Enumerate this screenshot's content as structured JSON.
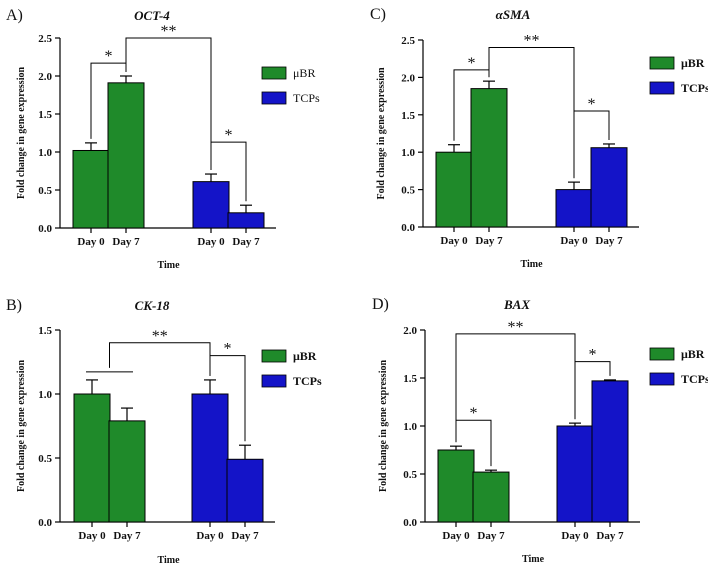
{
  "colors": {
    "ubr": "#1f8a2a",
    "tcps": "#1414c8",
    "axis": "#000000"
  },
  "chart_data": [
    {
      "type": "bar",
      "panel": "A)",
      "title": "OCT-4",
      "xlabel": "Time",
      "ylabel": "Fold change in gene expression",
      "ylim": [
        0,
        2.5
      ],
      "yticks": [
        "0.0",
        "0.5",
        "1.0",
        "1.5",
        "2.0",
        "2.5"
      ],
      "ytick_values": [
        0,
        0.5,
        1.0,
        1.5,
        2.0,
        2.5
      ],
      "categories": [
        "Day 0",
        "Day 7"
      ],
      "series": [
        {
          "name": "μBR",
          "values": [
            1.02,
            1.91
          ],
          "errors": [
            0.1,
            0.09
          ]
        },
        {
          "name": "TCPs",
          "values": [
            0.61,
            0.2
          ],
          "errors": [
            0.1,
            0.1
          ]
        }
      ],
      "legend_bold": false,
      "show_group_bracket": false,
      "annotations": [
        {
          "text": "*",
          "from": "0-0",
          "to": "0-1",
          "level": 2.17
        },
        {
          "text": "*",
          "from": "1-0",
          "to": "1-1",
          "level": 1.13
        },
        {
          "text": "**",
          "from": "0-1",
          "to": "1-0",
          "level": 2.5
        }
      ]
    },
    {
      "type": "bar",
      "panel": "C)",
      "title": "αSMA",
      "xlabel": "Time",
      "ylabel": "Fold change in gene expression",
      "ylim": [
        0,
        2.5
      ],
      "yticks": [
        "0.0",
        "0.5",
        "1.0",
        "1.5",
        "2.0",
        "2.5"
      ],
      "ytick_values": [
        0,
        0.5,
        1.0,
        1.5,
        2.0,
        2.5
      ],
      "categories": [
        "Day 0",
        "Day 7"
      ],
      "series": [
        {
          "name": "μBR",
          "values": [
            1.0,
            1.85
          ],
          "errors": [
            0.1,
            0.1
          ]
        },
        {
          "name": "TCPs",
          "values": [
            0.5,
            1.06
          ],
          "errors": [
            0.1,
            0.05
          ]
        }
      ],
      "legend_bold": true,
      "show_group_bracket": false,
      "annotations": [
        {
          "text": "*",
          "from": "0-0",
          "to": "0-1",
          "level": 2.1
        },
        {
          "text": "*",
          "from": "1-0",
          "to": "1-1",
          "level": 1.55
        },
        {
          "text": "**",
          "from": "0-1",
          "to": "1-0",
          "level": 2.4
        }
      ]
    },
    {
      "type": "bar",
      "panel": "B)",
      "title": "CK-18",
      "xlabel": "Time",
      "ylabel": "Fold change in gene expression",
      "ylim": [
        0,
        1.5
      ],
      "yticks": [
        "0.0",
        "0.5",
        "1.0",
        "1.5"
      ],
      "ytick_values": [
        0,
        0.5,
        1.0,
        1.5
      ],
      "categories": [
        "Day 0",
        "Day 7"
      ],
      "series": [
        {
          "name": "μBR",
          "values": [
            1.0,
            0.79
          ],
          "errors": [
            0.11,
            0.1
          ]
        },
        {
          "name": "TCPs",
          "values": [
            1.0,
            0.49
          ],
          "errors": [
            0.11,
            0.11
          ]
        }
      ],
      "legend_bold": true,
      "show_group_bracket": true,
      "annotations": [
        {
          "text": "*",
          "from": "1-0",
          "to": "1-1",
          "level": 1.3
        },
        {
          "text": "**",
          "from": "0-mid",
          "to": "1-0",
          "level": 1.4
        }
      ]
    },
    {
      "type": "bar",
      "panel": "D)",
      "title": "BAX",
      "xlabel": "Time",
      "ylabel": "Fold change in gene expression",
      "ylim": [
        0,
        2.0
      ],
      "yticks": [
        "0.0",
        "0.5",
        "1.0",
        "1.5",
        "2.0"
      ],
      "ytick_values": [
        0,
        0.5,
        1.0,
        1.5,
        2.0
      ],
      "categories": [
        "Day 0",
        "Day 7"
      ],
      "series": [
        {
          "name": "μBR",
          "values": [
            0.75,
            0.52
          ],
          "errors": [
            0.04,
            0.02
          ]
        },
        {
          "name": "TCPs",
          "values": [
            1.0,
            1.47
          ],
          "errors": [
            0.03,
            0.01
          ]
        }
      ],
      "legend_bold": true,
      "show_group_bracket": false,
      "annotations": [
        {
          "text": "*",
          "from": "0-0",
          "to": "0-1",
          "level": 1.06
        },
        {
          "text": "*",
          "from": "1-0",
          "to": "1-1",
          "level": 1.67
        },
        {
          "text": "**",
          "from": "0-0",
          "to": "1-0",
          "level": 1.96
        }
      ]
    }
  ]
}
